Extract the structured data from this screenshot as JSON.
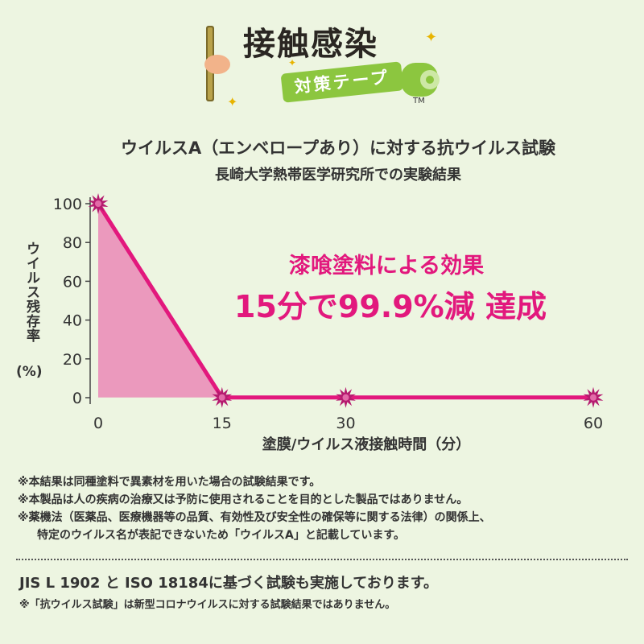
{
  "logo": {
    "main_text": "接触感染",
    "sub_text": "対策テープ",
    "trademark": "TM"
  },
  "chart_data": {
    "type": "area",
    "title": "ウイルスA（エンベロープあり）に対する抗ウイルス試験",
    "subtitle": "長崎大学熱帯医学研究所での実験結果",
    "xlabel": "塗膜/ウイルス液接触時間（分）",
    "ylabel": "ウイルス残存率",
    "ylabel_unit": "(%)",
    "x_ticks": [
      "0",
      "15",
      "30",
      "60"
    ],
    "y_ticks": [
      "0",
      "20",
      "40",
      "60",
      "80",
      "100"
    ],
    "xlim": [
      0,
      60
    ],
    "ylim": [
      0,
      100
    ],
    "grid": false,
    "series": [
      {
        "x": [
          0,
          15,
          30,
          60
        ],
        "y": [
          100,
          0.1,
          0.1,
          0.1
        ]
      }
    ],
    "color": "#e2187d",
    "fill_color": "#ea8fb9",
    "annotations": [
      "漆喰塗料による効果",
      "15分で99.9%減 達成"
    ]
  },
  "notes": [
    "※本結果は同種塗料で異素材を用いた場合の試験結果です。",
    "※本製品は人の疾病の治療又は予防に使用されることを目的とした製品ではありません。",
    "※薬機法（医薬品、医療機器等の品質、有効性及び安全性の確保等に関する法律）の関係上、",
    "特定のウイルス名が表記できないため「ウイルスA」と記載しています。"
  ],
  "footer": {
    "main": "JIS L 1902 と ISO 18184に基づく試験も実施しております。",
    "note": "※「抗ウイルス試験」は新型コロナウイルスに対する試験結果ではありません。"
  }
}
